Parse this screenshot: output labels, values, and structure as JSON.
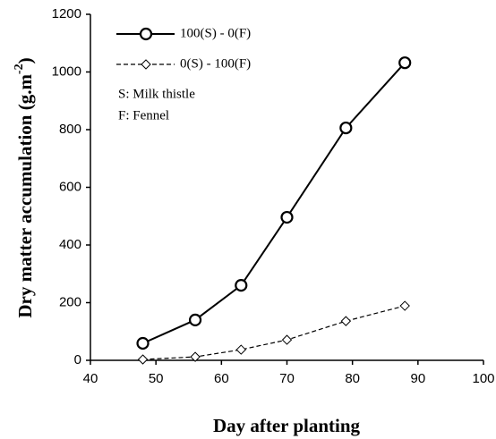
{
  "chart_data": {
    "type": "line",
    "x_label": "Day after planting",
    "y_label": {
      "text": "Dry matter accumulation (g.m",
      "superscript": "-2",
      "suffix": ")"
    },
    "x": [
      48,
      56,
      63,
      70,
      79,
      88
    ],
    "series": [
      {
        "name": "100(S) - 0(F)",
        "color": "#000000",
        "marker": "circle",
        "dash": "solid",
        "values": [
          59,
          140,
          260,
          496,
          806,
          1032
        ]
      },
      {
        "name": "0(S) - 100(F)",
        "color": "#000000",
        "marker": "diamond",
        "dash": "dashed",
        "values": [
          3,
          12,
          37,
          71,
          136,
          189
        ]
      }
    ],
    "annotations": [
      "S: Milk thistle",
      "F: Fennel"
    ],
    "xlim": [
      40,
      100
    ],
    "xticks": [
      40,
      50,
      60,
      70,
      80,
      90,
      100
    ],
    "ylim": [
      0,
      1200
    ],
    "yticks": [
      0,
      200,
      400,
      600,
      800,
      1000,
      1200
    ],
    "grid": false,
    "legend": "upper left"
  }
}
